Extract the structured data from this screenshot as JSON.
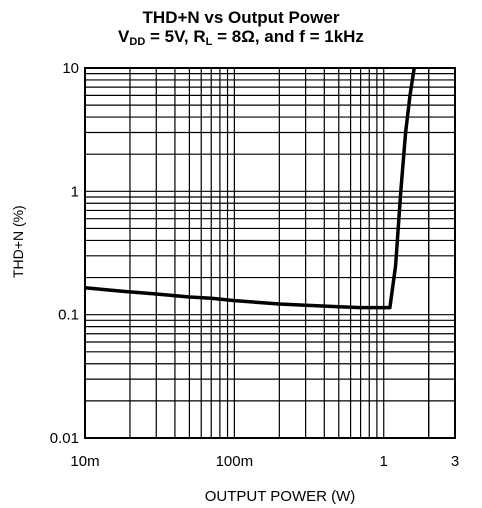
{
  "chart_data": {
    "type": "line",
    "title_line1": "THD+N vs Output Power",
    "title_line2": {
      "pre": "V",
      "sub1": "DD",
      "mid": " = 5V, R",
      "sub2": "L",
      "post": " = 8Ω, and f = 1kHz"
    },
    "xlabel": "OUTPUT POWER (W)",
    "ylabel": "THD+N (%)",
    "x_scale": "log",
    "y_scale": "log",
    "xlim": [
      0.01,
      3
    ],
    "ylim": [
      0.01,
      10
    ],
    "x_ticks": [
      {
        "value": 0.01,
        "label": "10m"
      },
      {
        "value": 0.1,
        "label": "100m"
      },
      {
        "value": 1,
        "label": "1"
      },
      {
        "value": 3,
        "label": "3"
      }
    ],
    "y_ticks": [
      {
        "value": 0.01,
        "label": "0.01"
      },
      {
        "value": 0.1,
        "label": "0.1"
      },
      {
        "value": 1,
        "label": "1"
      },
      {
        "value": 10,
        "label": "10"
      }
    ],
    "grid": true,
    "series": [
      {
        "x": [
          0.01,
          0.015,
          0.02,
          0.03,
          0.05,
          0.07,
          0.1,
          0.2,
          0.3,
          0.5,
          0.7,
          1.0,
          1.1,
          1.2,
          1.3,
          1.4,
          1.5,
          1.6
        ],
        "y": [
          0.165,
          0.158,
          0.153,
          0.147,
          0.139,
          0.136,
          0.13,
          0.122,
          0.119,
          0.116,
          0.114,
          0.114,
          0.114,
          0.25,
          1.0,
          3.0,
          6.0,
          10.0
        ]
      }
    ],
    "line_color": "#000000"
  }
}
